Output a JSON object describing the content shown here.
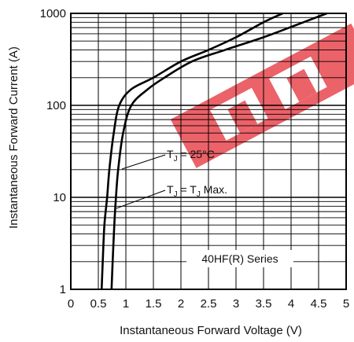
{
  "chart_data": {
    "type": "line",
    "title": "",
    "xlabel": "Instantaneous Forward Voltage (V)",
    "ylabel": "Instantaneous Forward Current (A)",
    "xlim": [
      0,
      5
    ],
    "ylim": [
      1,
      1000
    ],
    "yscale": "log",
    "grid": true,
    "x_ticks": [
      "0",
      "0.5",
      "1",
      "1.5",
      "2",
      "2.5",
      "3",
      "3.5",
      "4",
      "4.5",
      "5"
    ],
    "y_ticks": [
      "1",
      "10",
      "100",
      "1000"
    ],
    "series": [
      {
        "name": "TJ = 25°C",
        "color": "#000000",
        "points": [
          [
            0.56,
            1
          ],
          [
            0.58,
            2
          ],
          [
            0.61,
            5
          ],
          [
            0.66,
            10
          ],
          [
            0.7,
            20
          ],
          [
            0.78,
            50
          ],
          [
            0.88,
            100
          ],
          [
            1.1,
            150
          ],
          [
            1.5,
            200
          ],
          [
            2.0,
            300
          ],
          [
            2.5,
            400
          ],
          [
            3.0,
            550
          ],
          [
            3.5,
            800
          ],
          [
            3.85,
            1000
          ]
        ]
      },
      {
        "name": "TJ = TJ Max.",
        "color": "#000000",
        "points": [
          [
            0.74,
            1
          ],
          [
            0.76,
            2
          ],
          [
            0.79,
            5
          ],
          [
            0.82,
            10
          ],
          [
            0.86,
            20
          ],
          [
            0.95,
            50
          ],
          [
            1.1,
            100
          ],
          [
            1.4,
            150
          ],
          [
            1.7,
            200
          ],
          [
            2.2,
            300
          ],
          [
            2.8,
            400
          ],
          [
            3.5,
            550
          ],
          [
            4.1,
            750
          ],
          [
            4.65,
            1000
          ]
        ]
      }
    ],
    "annotations": [
      "40HF(R) Series"
    ]
  },
  "labels": {
    "series1": "T",
    "series1_sub": "J",
    "series1_rest": " = 25°C",
    "series2": "T",
    "series2_sub": "J",
    "series2_mid": " = T",
    "series2_sub2": "J",
    "series2_rest": " Max.",
    "model": "40HF(R) Series"
  },
  "watermark": {
    "color": "#e8474f"
  }
}
